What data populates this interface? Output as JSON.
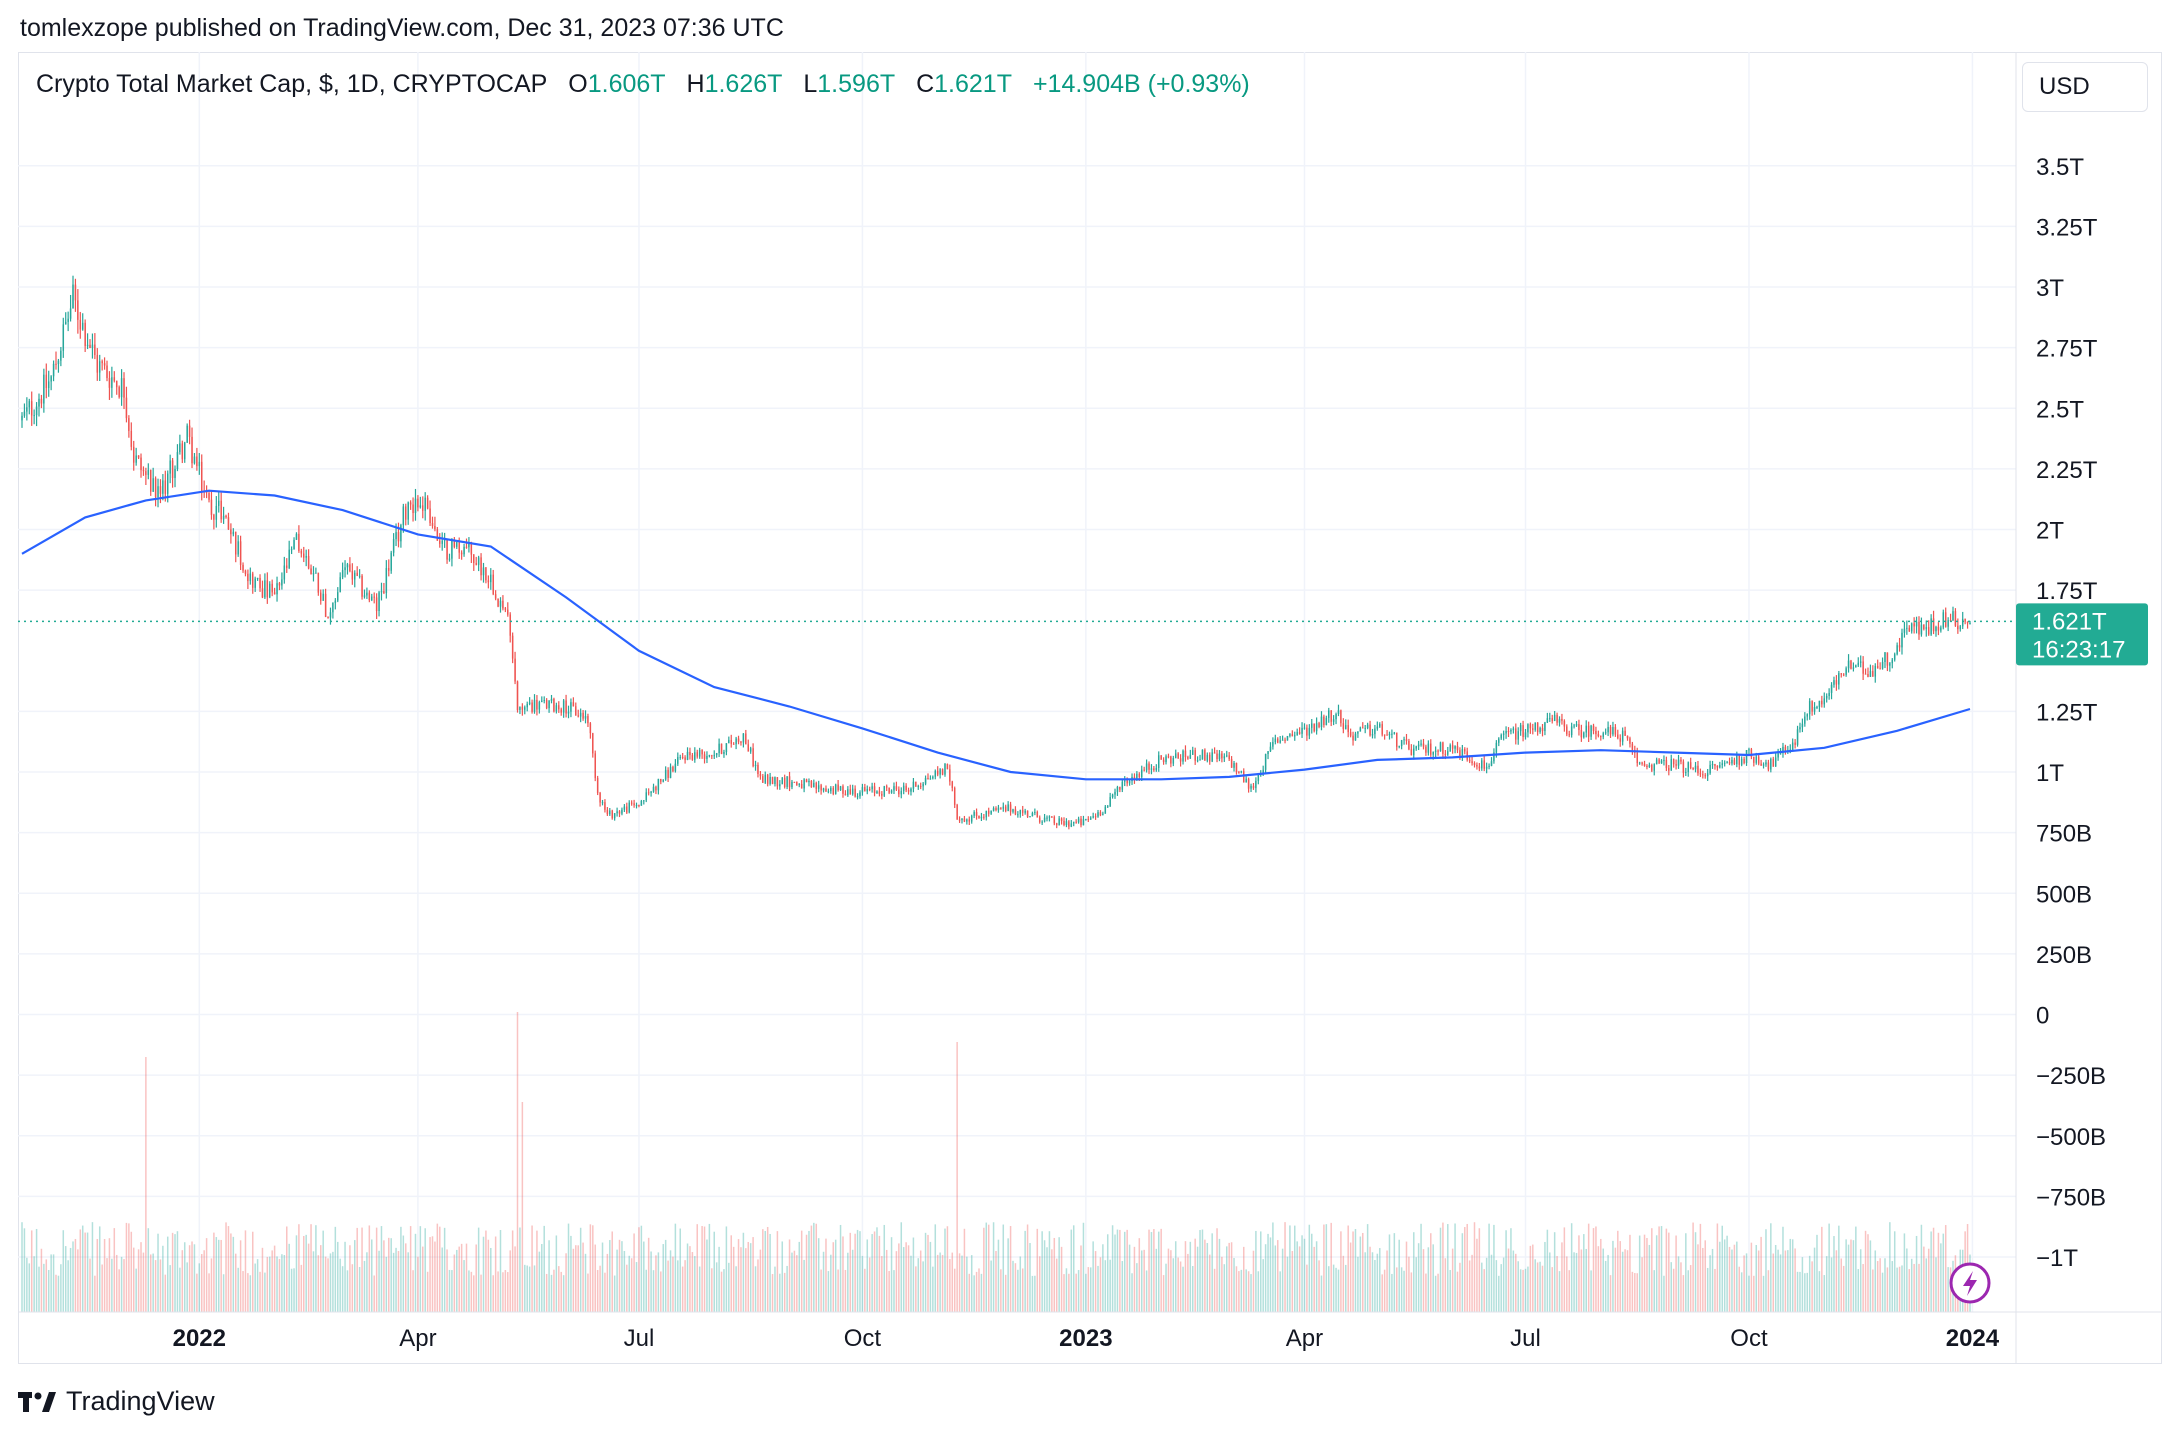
{
  "publish_line": "tomlexzope published on TradingView.com, Dec 31, 2023 07:36 UTC",
  "legend": {
    "symbol": "Crypto Total Market Cap, $, 1D, CRYPTOCAP",
    "open_label": "O",
    "open_value": "1.606T",
    "high_label": "H",
    "high_value": "1.626T",
    "low_label": "L",
    "low_value": "1.596T",
    "close_label": "C",
    "close_value": "1.621T",
    "change": "+14.904B (+0.93%)"
  },
  "currency": "USD",
  "last_price": {
    "value": "1.621T",
    "countdown": "16:23:17"
  },
  "brand": "TradingView",
  "colors": {
    "up": "#26a69a",
    "down": "#ef5350",
    "ma_line": "#2962ff",
    "price_tag": "#22ab94",
    "lightning": "#9c27b0"
  },
  "icons": {
    "lightning": "lightning-icon",
    "logo": "tradingview-logo-icon"
  },
  "chart_data": {
    "type": "candlestick",
    "title": "Crypto Total Market Cap, $, 1D, CRYPTOCAP",
    "y_ticks": [
      "3.5T",
      "3.25T",
      "3T",
      "2.75T",
      "2.5T",
      "2.25T",
      "2T",
      "1.75T",
      "1.25T",
      "1T",
      "750B",
      "500B",
      "250B",
      "0",
      "−250B",
      "−500B",
      "−750B",
      "−1T"
    ],
    "y_tick_values": [
      3.5,
      3.25,
      3.0,
      2.75,
      2.5,
      2.25,
      2.0,
      1.75,
      1.25,
      1.0,
      0.75,
      0.5,
      0.25,
      0,
      -0.25,
      -0.5,
      -0.75,
      -1.0
    ],
    "y_unit": "trillion USD",
    "x_ticks": [
      {
        "label": "2022",
        "date": "2022-01-01",
        "bold": true
      },
      {
        "label": "Apr",
        "date": "2022-04-01",
        "bold": false
      },
      {
        "label": "Jul",
        "date": "2022-07-01",
        "bold": false
      },
      {
        "label": "Oct",
        "date": "2022-10-01",
        "bold": false
      },
      {
        "label": "2023",
        "date": "2023-01-01",
        "bold": true
      },
      {
        "label": "Apr",
        "date": "2023-04-01",
        "bold": false
      },
      {
        "label": "Jul",
        "date": "2023-07-01",
        "bold": false
      },
      {
        "label": "Oct",
        "date": "2023-10-01",
        "bold": false
      },
      {
        "label": "2024",
        "date": "2024-01-01",
        "bold": true
      }
    ],
    "x_range": [
      "2021-10-20",
      "2023-12-31"
    ],
    "close_path": [
      [
        "2021-10-20",
        2.45
      ],
      [
        "2021-11-01",
        2.62
      ],
      [
        "2021-11-10",
        2.95
      ],
      [
        "2021-11-20",
        2.68
      ],
      [
        "2021-12-01",
        2.58
      ],
      [
        "2021-12-05",
        2.3
      ],
      [
        "2021-12-15",
        2.13
      ],
      [
        "2021-12-27",
        2.38
      ],
      [
        "2022-01-05",
        2.1
      ],
      [
        "2022-01-10",
        2.08
      ],
      [
        "2022-01-22",
        1.8
      ],
      [
        "2022-02-01",
        1.72
      ],
      [
        "2022-02-10",
        1.95
      ],
      [
        "2022-02-18",
        1.8
      ],
      [
        "2022-02-24",
        1.62
      ],
      [
        "2022-03-01",
        1.85
      ],
      [
        "2022-03-15",
        1.68
      ],
      [
        "2022-03-28",
        2.12
      ],
      [
        "2022-04-05",
        2.1
      ],
      [
        "2022-04-10",
        1.92
      ],
      [
        "2022-04-20",
        1.93
      ],
      [
        "2022-05-01",
        1.8
      ],
      [
        "2022-05-09",
        1.6
      ],
      [
        "2022-05-12",
        1.27
      ],
      [
        "2022-05-20",
        1.28
      ],
      [
        "2022-06-01",
        1.27
      ],
      [
        "2022-06-10",
        1.22
      ],
      [
        "2022-06-14",
        0.92
      ],
      [
        "2022-06-18",
        0.82
      ],
      [
        "2022-07-01",
        0.87
      ],
      [
        "2022-07-20",
        1.07
      ],
      [
        "2022-08-01",
        1.08
      ],
      [
        "2022-08-13",
        1.15
      ],
      [
        "2022-08-20",
        0.97
      ],
      [
        "2022-09-01",
        0.96
      ],
      [
        "2022-09-15",
        0.93
      ],
      [
        "2022-10-01",
        0.92
      ],
      [
        "2022-10-20",
        0.93
      ],
      [
        "2022-11-05",
        1.02
      ],
      [
        "2022-11-09",
        0.82
      ],
      [
        "2022-11-12",
        0.81
      ],
      [
        "2022-12-01",
        0.85
      ],
      [
        "2022-12-20",
        0.79
      ],
      [
        "2022-12-31",
        0.79
      ],
      [
        "2023-01-10",
        0.86
      ],
      [
        "2023-01-15",
        0.95
      ],
      [
        "2023-02-01",
        1.05
      ],
      [
        "2023-02-15",
        1.07
      ],
      [
        "2023-03-01",
        1.05
      ],
      [
        "2023-03-10",
        0.93
      ],
      [
        "2023-03-20",
        1.13
      ],
      [
        "2023-04-01",
        1.17
      ],
      [
        "2023-04-14",
        1.25
      ],
      [
        "2023-04-20",
        1.15
      ],
      [
        "2023-05-01",
        1.18
      ],
      [
        "2023-05-15",
        1.09
      ],
      [
        "2023-06-01",
        1.1
      ],
      [
        "2023-06-15",
        1.02
      ],
      [
        "2023-06-22",
        1.15
      ],
      [
        "2023-07-01",
        1.17
      ],
      [
        "2023-07-13",
        1.21
      ],
      [
        "2023-07-20",
        1.17
      ],
      [
        "2023-08-01",
        1.17
      ],
      [
        "2023-08-10",
        1.15
      ],
      [
        "2023-08-17",
        1.03
      ],
      [
        "2023-09-01",
        1.03
      ],
      [
        "2023-09-12",
        1.0
      ],
      [
        "2023-10-01",
        1.07
      ],
      [
        "2023-10-10",
        1.03
      ],
      [
        "2023-10-20",
        1.13
      ],
      [
        "2023-10-24",
        1.25
      ],
      [
        "2023-11-01",
        1.3
      ],
      [
        "2023-11-10",
        1.43
      ],
      [
        "2023-11-20",
        1.42
      ],
      [
        "2023-12-01",
        1.5
      ],
      [
        "2023-12-05",
        1.62
      ],
      [
        "2023-12-11",
        1.58
      ],
      [
        "2023-12-20",
        1.63
      ],
      [
        "2023-12-31",
        1.621
      ]
    ],
    "moving_average": [
      [
        "2021-10-20",
        1.9
      ],
      [
        "2021-11-15",
        2.05
      ],
      [
        "2021-12-10",
        2.12
      ],
      [
        "2022-01-05",
        2.16
      ],
      [
        "2022-02-01",
        2.14
      ],
      [
        "2022-03-01",
        2.08
      ],
      [
        "2022-04-01",
        1.98
      ],
      [
        "2022-05-01",
        1.93
      ],
      [
        "2022-06-01",
        1.72
      ],
      [
        "2022-07-01",
        1.5
      ],
      [
        "2022-08-01",
        1.35
      ],
      [
        "2022-09-01",
        1.27
      ],
      [
        "2022-10-01",
        1.18
      ],
      [
        "2022-11-01",
        1.08
      ],
      [
        "2022-12-01",
        1.0
      ],
      [
        "2023-01-01",
        0.97
      ],
      [
        "2023-02-01",
        0.97
      ],
      [
        "2023-03-01",
        0.98
      ],
      [
        "2023-04-01",
        1.01
      ],
      [
        "2023-05-01",
        1.05
      ],
      [
        "2023-06-01",
        1.06
      ],
      [
        "2023-07-01",
        1.08
      ],
      [
        "2023-08-01",
        1.09
      ],
      [
        "2023-09-01",
        1.08
      ],
      [
        "2023-10-01",
        1.07
      ],
      [
        "2023-11-01",
        1.1
      ],
      [
        "2023-12-01",
        1.17
      ],
      [
        "2023-12-31",
        1.26
      ]
    ],
    "volume_spikes": [
      [
        "2021-12-10",
        0.85
      ],
      [
        "2022-05-12",
        1.0
      ],
      [
        "2022-05-14",
        0.7
      ],
      [
        "2022-11-09",
        0.9
      ]
    ],
    "grid": true,
    "legend_position": "top-left"
  }
}
